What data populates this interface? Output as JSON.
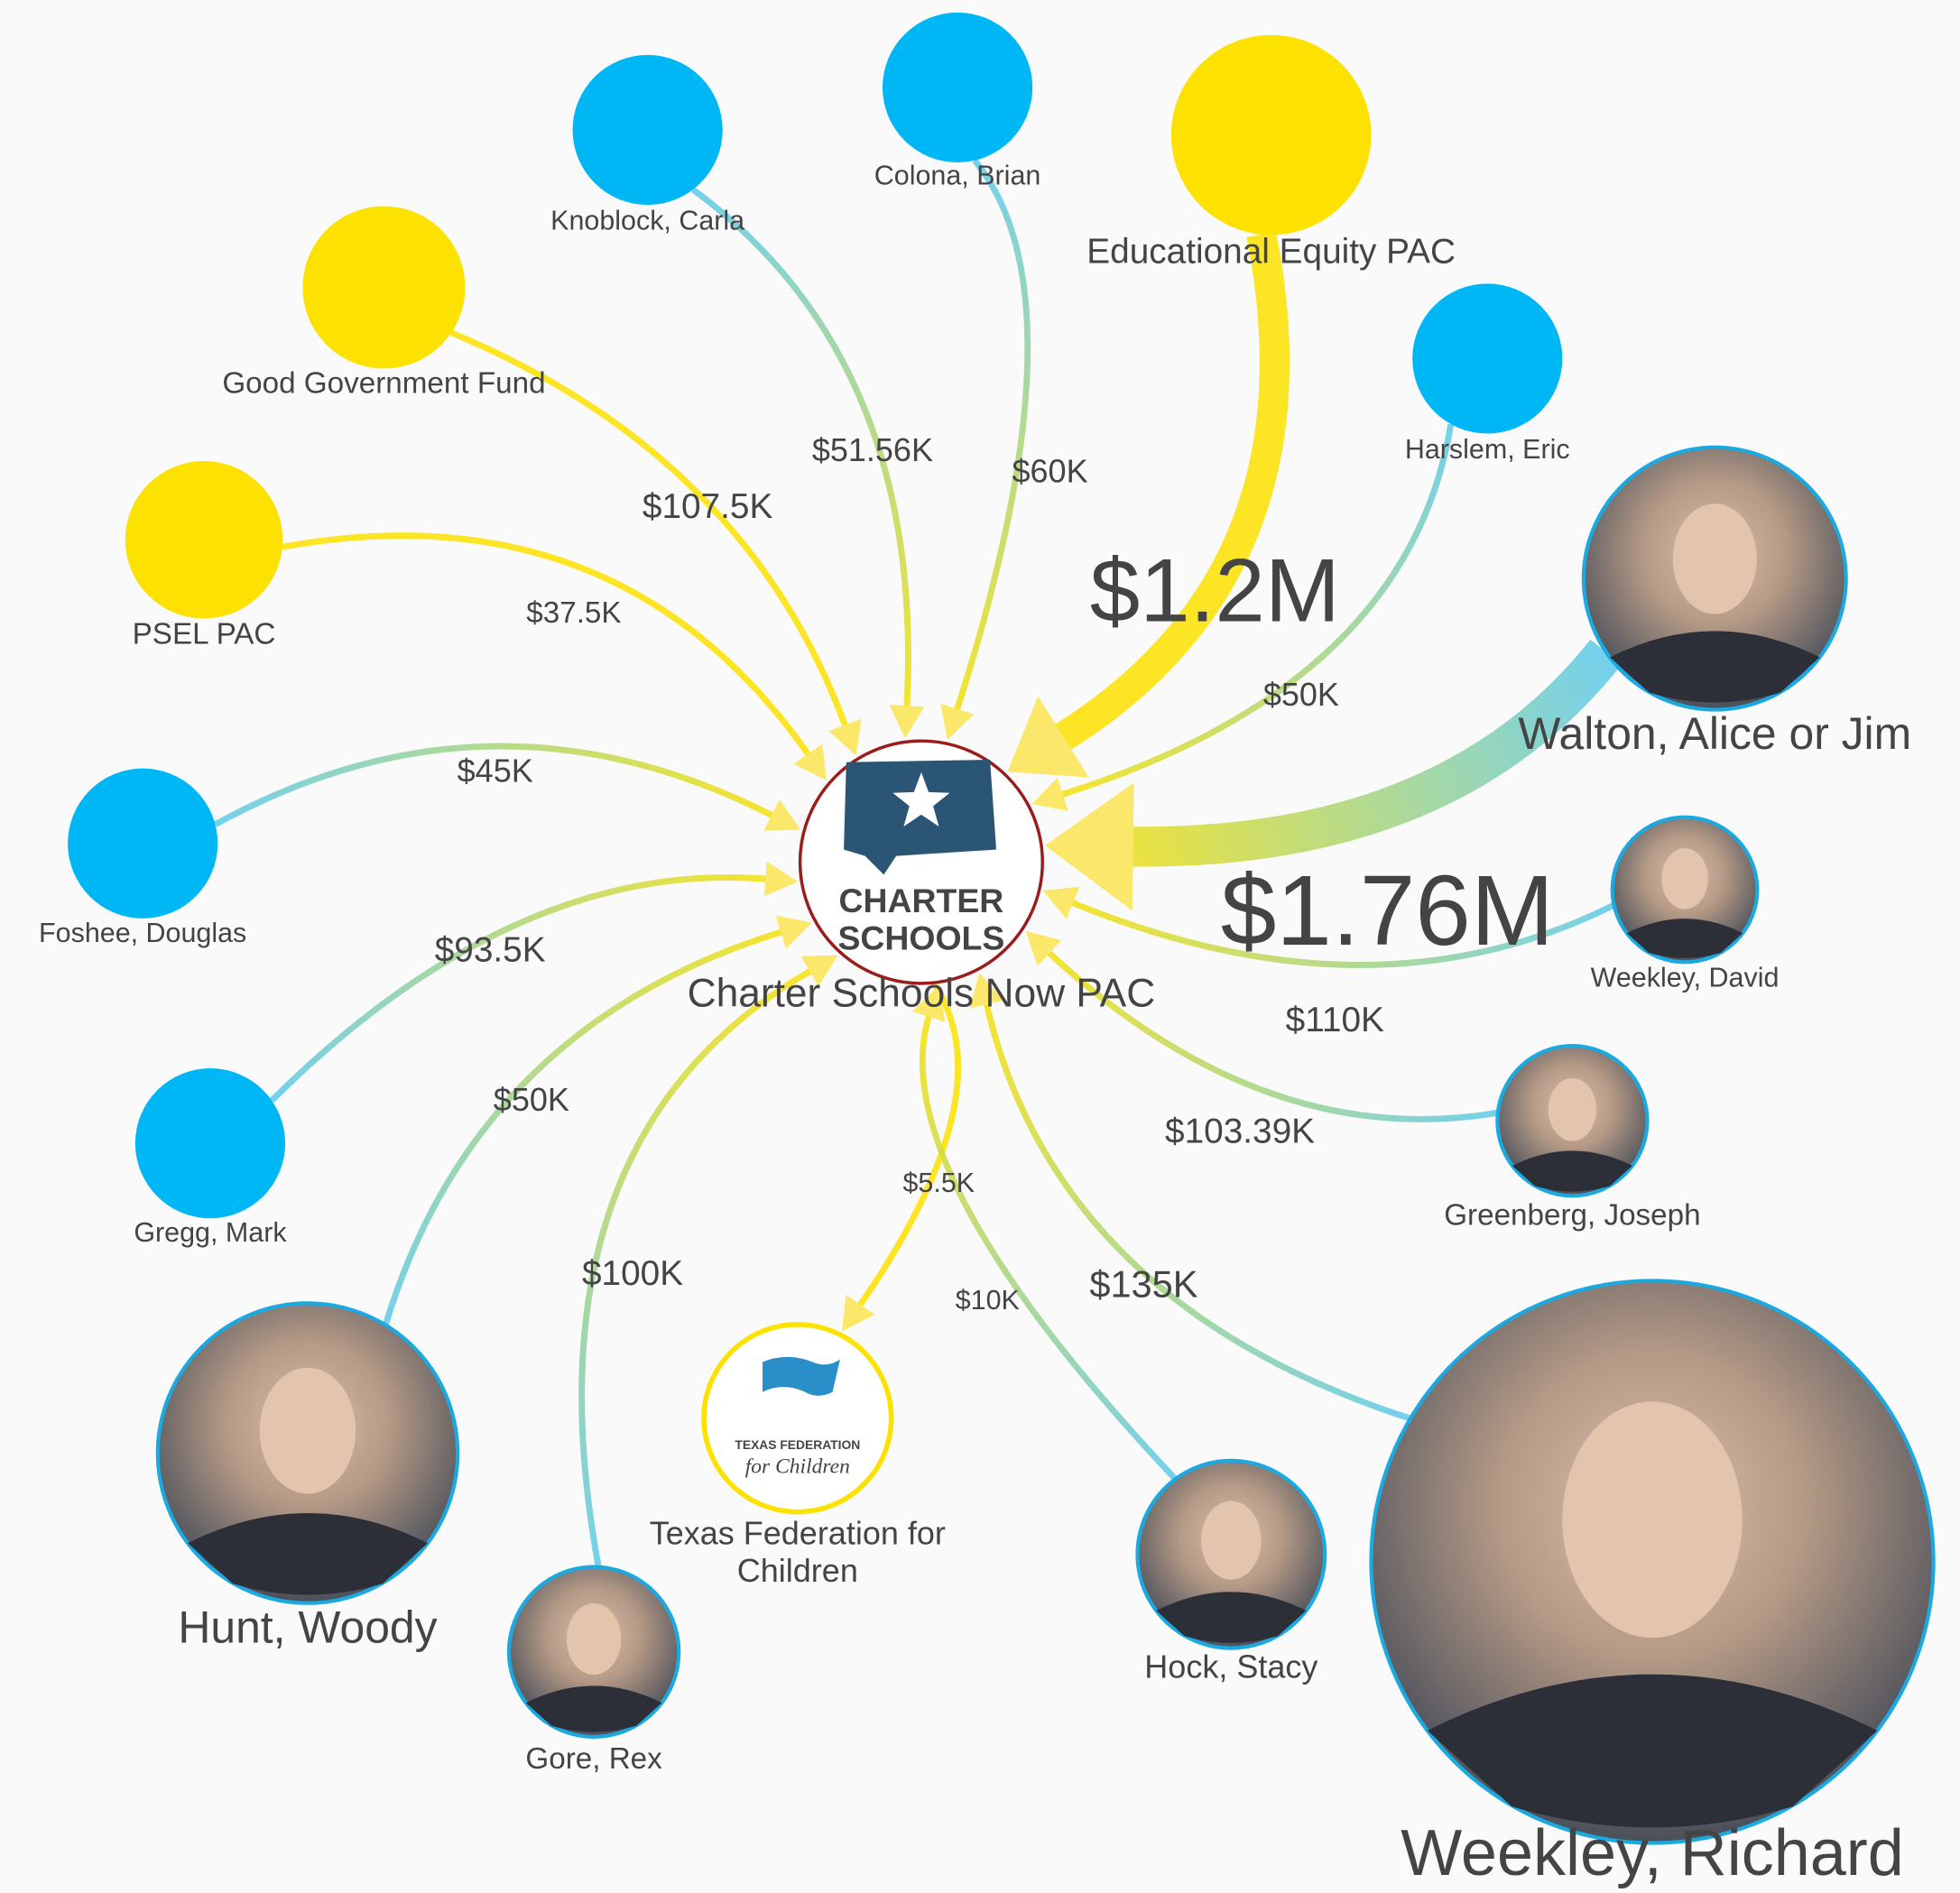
{
  "center": {
    "label": "Charter Schools Now PAC",
    "logo_text": [
      "CHARTER",
      "SCHOOLS"
    ]
  },
  "nodes": [
    {
      "label": "Knoblock, Carla",
      "edge_label": "$51.56K"
    },
    {
      "label": "Colona, Brian",
      "edge_label": "$60K"
    },
    {
      "label": "Educational Equity PAC",
      "edge_label": "$1.2M"
    },
    {
      "label": "Good Government Fund",
      "edge_label": "$107.5K"
    },
    {
      "label": "PSEL PAC",
      "edge_label": "$37.5K"
    },
    {
      "label": "Harslem, Eric",
      "edge_label": "$50K"
    },
    {
      "label": "Walton, Alice or Jim",
      "edge_label": "$1.76M"
    },
    {
      "label": "Foshee, Douglas",
      "edge_label": "$45K"
    },
    {
      "label": "Weekley, David",
      "edge_label": "$110K"
    },
    {
      "label": "Gregg, Mark",
      "edge_label": "$93.5K"
    },
    {
      "label": "Greenberg, Joseph",
      "edge_label": "$103.39K"
    },
    {
      "label": "Hunt, Woody",
      "edge_label": "$50K"
    },
    {
      "label_lines": [
        "Texas Federation for",
        "Children"
      ],
      "logo_text": [
        "TEXAS FEDERATION",
        "for Children"
      ],
      "edge_label": "$5.5K"
    },
    {
      "label": "Gore, Rex",
      "edge_label": "$100K"
    },
    {
      "label": "Hock, Stacy",
      "edge_label": "$10K"
    },
    {
      "label": "Weekley, Richard",
      "edge_label": "$135K"
    }
  ]
}
